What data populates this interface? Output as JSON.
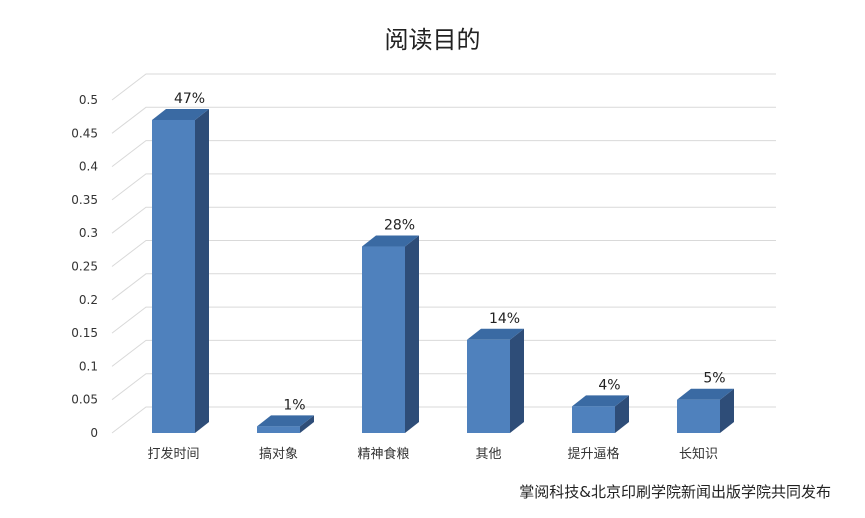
{
  "chart_data": {
    "type": "bar",
    "title": "阅读目的",
    "categories": [
      "打发时间",
      "搞对象",
      "精神食粮",
      "其他",
      "提升逼格",
      "长知识"
    ],
    "values": [
      0.47,
      0.01,
      0.28,
      0.14,
      0.04,
      0.05
    ],
    "data_labels": [
      "47%",
      "1%",
      "28%",
      "14%",
      "4%",
      "5%"
    ],
    "ylim": [
      0,
      0.5
    ],
    "yticks": [
      0,
      0.05,
      0.1,
      0.15,
      0.2,
      0.25,
      0.3,
      0.35,
      0.4,
      0.45,
      0.5
    ],
    "ytick_labels": [
      "0",
      "0.05",
      "0.1",
      "0.15",
      "0.2",
      "0.25",
      "0.3",
      "0.35",
      "0.4",
      "0.45",
      "0.5"
    ],
    "grid": true,
    "legend": "none",
    "style": "3d-column",
    "colors": {
      "bar_front": "#4f81bd",
      "bar_top": "#3a6aa3",
      "bar_side": "#2e4d78",
      "grid": "#d9d9d9"
    }
  },
  "source_note": "掌阅科技&北京印刷学院新闻出版学院共同发布"
}
